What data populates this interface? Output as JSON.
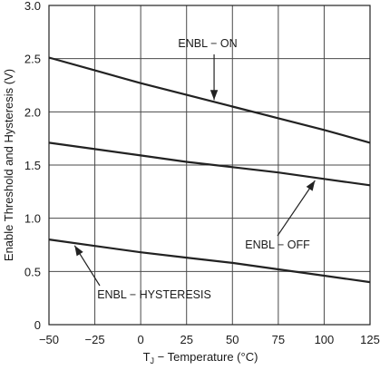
{
  "chart_data": {
    "type": "line",
    "title": "",
    "xlabel_main": "T",
    "xlabel_sub": "J",
    "xlabel_rest": " − Temperature (°C)",
    "ylabel": "Enable Threshold and Hysteresis (V)",
    "xlim": [
      -50,
      125
    ],
    "ylim": [
      0,
      3.0
    ],
    "x_ticks": [
      -50,
      -25,
      0,
      25,
      50,
      75,
      100,
      125
    ],
    "x_tick_labels": [
      "−50",
      "−25",
      "0",
      "25",
      "50",
      "75",
      "100",
      "125"
    ],
    "y_ticks": [
      0,
      0.5,
      1.0,
      1.5,
      2.0,
      2.5,
      3.0
    ],
    "y_tick_labels": [
      "0",
      "0.5",
      "1.0",
      "1.5",
      "2.0",
      "2.5",
      "3.0"
    ],
    "grid": true,
    "series": [
      {
        "name": "ENBL − ON",
        "x": [
          -50,
          -25,
          0,
          25,
          50,
          75,
          100,
          125
        ],
        "y": [
          2.51,
          2.39,
          2.27,
          2.16,
          2.05,
          1.94,
          1.83,
          1.71
        ]
      },
      {
        "name": "ENBL − OFF",
        "x": [
          -50,
          -25,
          0,
          25,
          50,
          75,
          100,
          125
        ],
        "y": [
          1.71,
          1.65,
          1.59,
          1.53,
          1.48,
          1.43,
          1.37,
          1.31
        ]
      },
      {
        "name": "ENBL − HYSTERESIS",
        "x": [
          -50,
          -25,
          0,
          25,
          50,
          75,
          100,
          125
        ],
        "y": [
          0.8,
          0.74,
          0.68,
          0.63,
          0.58,
          0.52,
          0.46,
          0.4
        ]
      }
    ],
    "annotations": [
      {
        "text": "ENBL − ON",
        "series": 0
      },
      {
        "text": "ENBL − OFF",
        "series": 1
      },
      {
        "text": "ENBL − HYSTERESIS",
        "series": 2
      }
    ]
  }
}
